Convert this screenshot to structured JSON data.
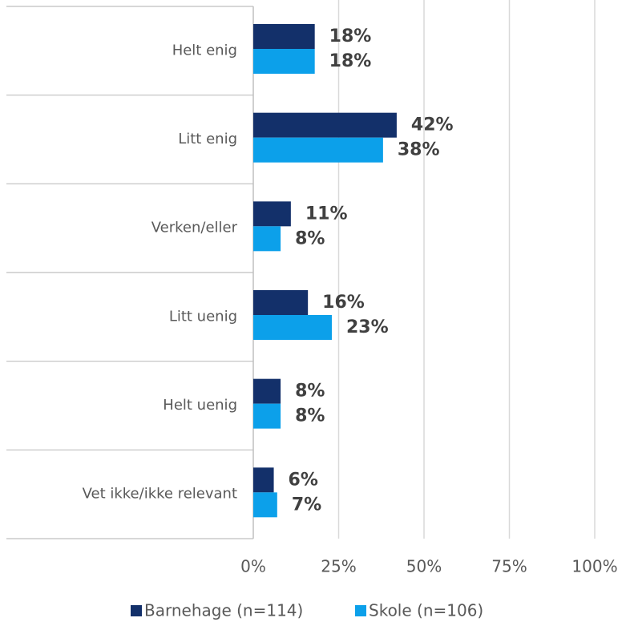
{
  "chart_data": {
    "type": "bar",
    "orientation": "horizontal",
    "categories": [
      "Helt enig",
      "Litt enig",
      "Verken/eller",
      "Litt uenig",
      "Helt uenig",
      "Vet ikke/ikke relevant"
    ],
    "series": [
      {
        "name": "Barnehage (n=114)",
        "color": "#13306a",
        "values": [
          18,
          42,
          11,
          16,
          8,
          6
        ],
        "value_labels": [
          "18%",
          "42%",
          "11%",
          "16%",
          "8%",
          "6%"
        ]
      },
      {
        "name": "Skole (n=106)",
        "color": "#0ca0ea",
        "values": [
          18,
          38,
          8,
          23,
          8,
          7
        ],
        "value_labels": [
          "18%",
          "38%",
          "8%",
          "23%",
          "8%",
          "7%"
        ]
      }
    ],
    "xlim": [
      0,
      100
    ],
    "xticks": [
      {
        "value": 0,
        "label": "0%"
      },
      {
        "value": 25,
        "label": "25%"
      },
      {
        "value": 50,
        "label": "50%"
      },
      {
        "value": 75,
        "label": "75%"
      },
      {
        "value": 100,
        "label": "100%"
      }
    ],
    "grid": true,
    "legend": "bottom"
  }
}
